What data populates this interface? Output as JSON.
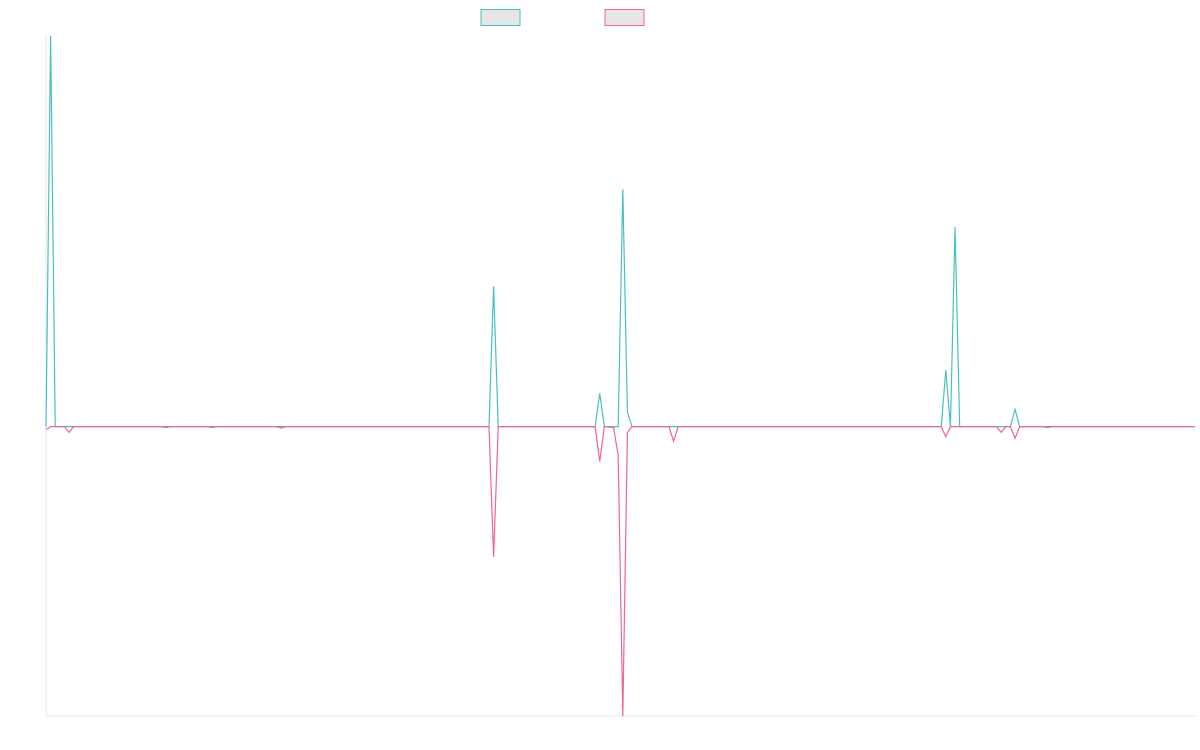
{
  "chart_data": {
    "type": "line",
    "title": "",
    "xlabel": "",
    "ylabel": "",
    "x_count": 250,
    "ylim": [
      -100,
      135
    ],
    "grid": false,
    "legend_position": "top-center",
    "series": [
      {
        "name": "",
        "color": "#4bbfbf",
        "values": {
          "0": 0,
          "1": 135,
          "2": 0,
          "96": 0,
          "97": 48.5,
          "98": 0,
          "119": 0,
          "120": 11.5,
          "121": 0,
          "122": 0,
          "124": 0,
          "125": 82,
          "126": 5,
          "127": 0,
          "194": 0,
          "195": 19.5,
          "196": 0,
          "197": 69,
          "198": 0,
          "206": 0,
          "207": 0,
          "209": 0,
          "210": 6,
          "211": 0,
          "249": 0
        }
      },
      {
        "name": "",
        "color": "#f0668c",
        "values": {
          "0": -1,
          "1": 0,
          "4": 0,
          "5": -2,
          "6": 0,
          "25": 0,
          "26": -0.3,
          "27": 0,
          "35": 0,
          "36": -0.3,
          "37": 0,
          "50": 0,
          "51": -0.5,
          "52": 0,
          "96": 0,
          "97": -45,
          "98": 0,
          "119": 0,
          "120": -12,
          "121": 0,
          "123": -0.3,
          "124": -10,
          "125": -100,
          "126": -2,
          "127": 0,
          "135": 0,
          "136": -5,
          "137": 0,
          "194": 0,
          "195": -3.5,
          "196": 0,
          "206": 0,
          "207": -2,
          "208": 0,
          "209": 0,
          "210": -4,
          "211": 0,
          "216": 0,
          "217": -0.3,
          "218": 0,
          "249": 0
        }
      }
    ]
  }
}
